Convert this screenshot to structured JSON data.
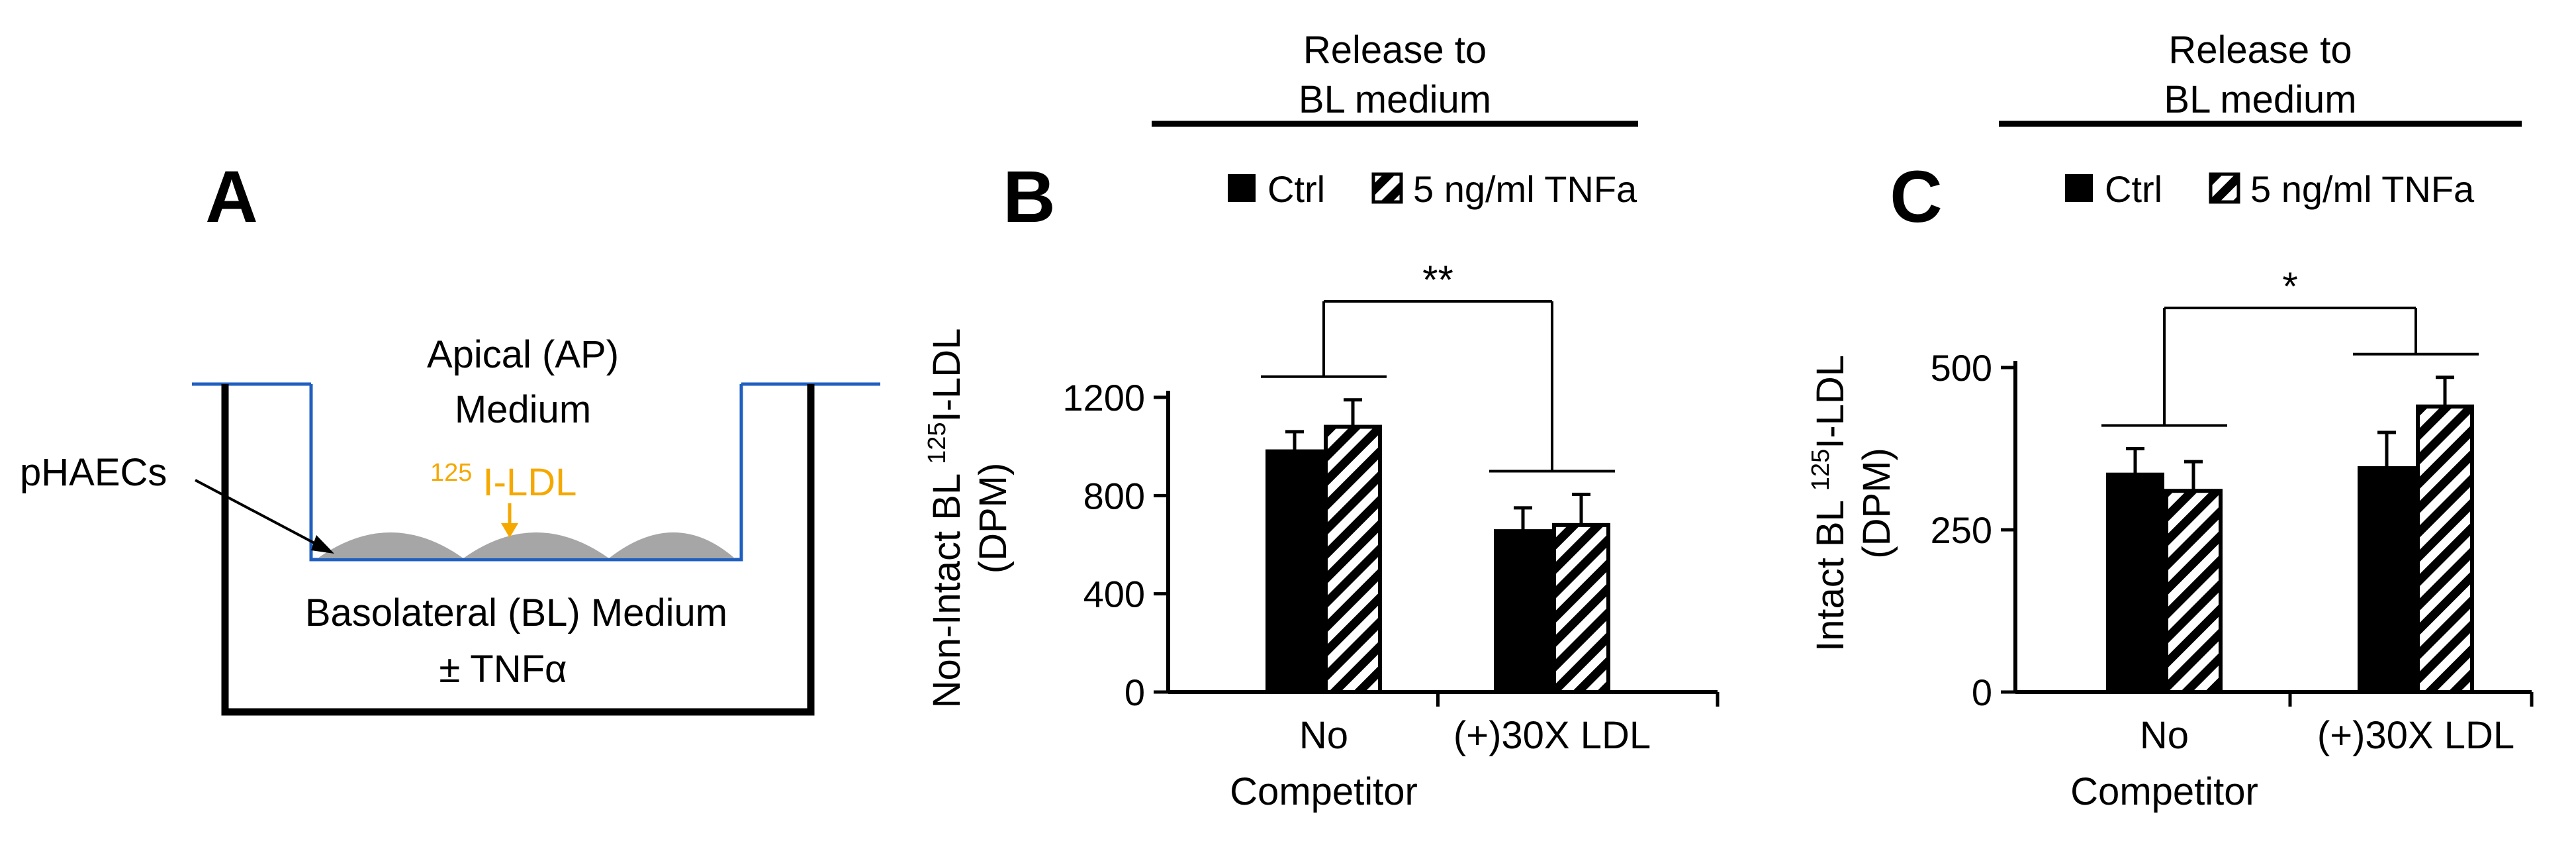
{
  "colors": {
    "ink": "#000000",
    "well": "#1f5fbf",
    "label_ldl": "#f5a800",
    "cells": "#a6a6a6"
  },
  "panel_a": {
    "letter": "A",
    "apical_line1": "Apical (AP)",
    "apical_line2": "Medium",
    "cells_label": "pHAECs",
    "ldl_sup": "125",
    "ldl_label": "I-LDL",
    "bl_line1": "Basolateral (BL) Medium",
    "bl_line2": "± TNFα"
  },
  "chart_data": [
    {
      "type": "bar",
      "panel": "B",
      "header_line1": "Release to",
      "header_line2": "BL medium",
      "categories": [
        [
          "No",
          "Competitor"
        ],
        [
          "(+)30X LDL"
        ]
      ],
      "series": [
        {
          "name": "Ctrl",
          "values": [
            980,
            655
          ],
          "errors": [
            80,
            95
          ],
          "pattern": "solid"
        },
        {
          "name": "5 ng/ml TNFa",
          "values": [
            1080,
            680
          ],
          "errors": [
            110,
            125
          ],
          "pattern": "hatched"
        }
      ],
      "ylabel_line1_pre": "Non-Intact BL ",
      "ylabel_sup": "125",
      "ylabel_line1_post": "I-LDL",
      "ylabel_line2": "(DPM)",
      "ylim": [
        0,
        1200
      ],
      "yticks": [
        0,
        400,
        800,
        1200
      ],
      "significance": "**",
      "grid": false,
      "legend": "top"
    },
    {
      "type": "bar",
      "panel": "C",
      "header_line1": "Release to",
      "header_line2": "BL medium",
      "categories": [
        [
          "No",
          "Competitor"
        ],
        [
          "(+)30X LDL"
        ]
      ],
      "series": [
        {
          "name": "Ctrl",
          "values": [
            335,
            345
          ],
          "errors": [
            40,
            55
          ],
          "pattern": "solid"
        },
        {
          "name": "5 ng/ml TNFa",
          "values": [
            310,
            440
          ],
          "errors": [
            45,
            45
          ],
          "pattern": "hatched"
        }
      ],
      "ylabel_line1_pre": "Intact BL ",
      "ylabel_sup": "125",
      "ylabel_line1_post": "I-LDL",
      "ylabel_line2": "(DPM)",
      "ylim": [
        0,
        500
      ],
      "yticks": [
        0,
        250,
        500
      ],
      "significance": "*",
      "grid": false,
      "legend": "top"
    }
  ]
}
